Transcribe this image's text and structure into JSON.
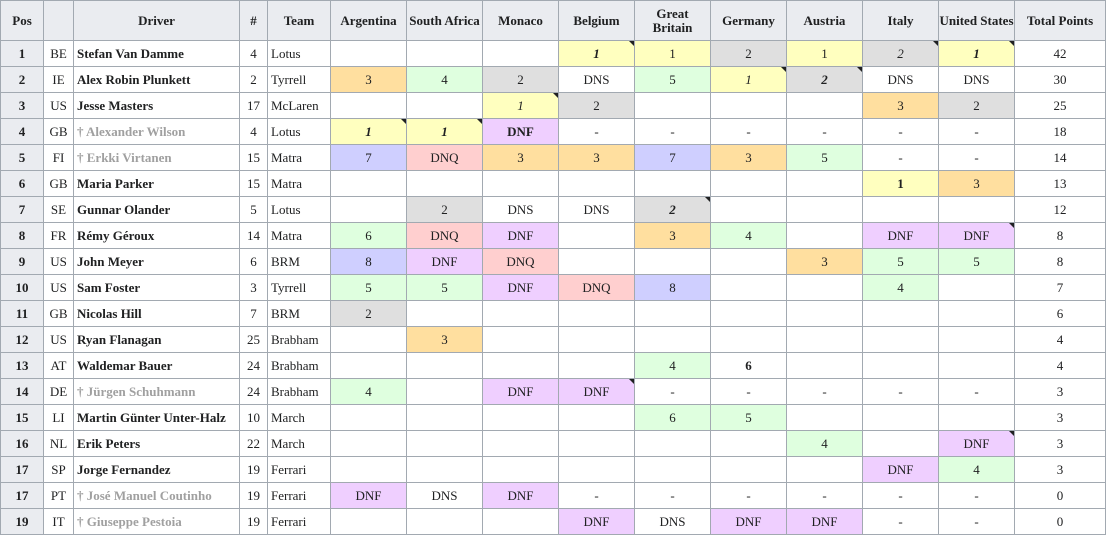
{
  "headers": {
    "pos": "Pos",
    "driver": "Driver",
    "num": "#",
    "team": "Team",
    "races": [
      "Argentina",
      "South Africa",
      "Monaco",
      "Belgium",
      "Great Britain",
      "Germany",
      "Austria",
      "Italy",
      "United States"
    ],
    "points": "Total Points"
  },
  "colors": {
    "gold": "#ffffbf",
    "silver": "#dfdfdf",
    "bronze": "#ffdf9f",
    "points_finish": "#dfffdf",
    "non_points_finish": "#cfcfff",
    "retired": "#efcfff",
    "not_qualified": "#ffcfcf",
    "did_not_start": "#ffffff",
    "header_bg": "#eaecf0",
    "grid": "#a2a9b1",
    "deceased_text": "#a0a0a0"
  },
  "rows": [
    {
      "pos": "1",
      "nat": "BE",
      "driver": "Stefan Van Damme",
      "dead": false,
      "num": "4",
      "team": "Lotus",
      "points": "42",
      "results": [
        {
          "v": "",
          "c": "none"
        },
        {
          "v": "",
          "c": "none"
        },
        {
          "v": "",
          "c": "none"
        },
        {
          "v": "1",
          "c": "gold",
          "b": true,
          "i": true,
          "m": true
        },
        {
          "v": "1",
          "c": "gold"
        },
        {
          "v": "2",
          "c": "silver"
        },
        {
          "v": "1",
          "c": "gold"
        },
        {
          "v": "2",
          "c": "silver",
          "i": true,
          "m": true
        },
        {
          "v": "1",
          "c": "gold",
          "b": true,
          "i": true,
          "m": true
        }
      ]
    },
    {
      "pos": "2",
      "nat": "IE",
      "driver": "Alex Robin Plunkett",
      "dead": false,
      "num": "2",
      "team": "Tyrrell",
      "points": "30",
      "results": [
        {
          "v": "3",
          "c": "bronze"
        },
        {
          "v": "4",
          "c": "green"
        },
        {
          "v": "2",
          "c": "silver"
        },
        {
          "v": "DNS",
          "c": "white"
        },
        {
          "v": "5",
          "c": "green"
        },
        {
          "v": "1",
          "c": "gold",
          "i": true,
          "m": true
        },
        {
          "v": "2",
          "c": "silver",
          "b": true,
          "i": true,
          "m": true
        },
        {
          "v": "DNS",
          "c": "white"
        },
        {
          "v": "DNS",
          "c": "white"
        }
      ]
    },
    {
      "pos": "3",
      "nat": "US",
      "driver": "Jesse Masters",
      "dead": false,
      "num": "17",
      "team": "McLaren",
      "points": "25",
      "results": [
        {
          "v": "",
          "c": "none"
        },
        {
          "v": "",
          "c": "none"
        },
        {
          "v": "1",
          "c": "gold",
          "i": true,
          "m": true
        },
        {
          "v": "2",
          "c": "silver"
        },
        {
          "v": "",
          "c": "none"
        },
        {
          "v": "",
          "c": "none"
        },
        {
          "v": "",
          "c": "none"
        },
        {
          "v": "3",
          "c": "bronze"
        },
        {
          "v": "2",
          "c": "silver"
        }
      ]
    },
    {
      "pos": "4",
      "nat": "GB",
      "driver": "† Alexander Wilson",
      "dead": true,
      "num": "4",
      "team": "Lotus",
      "points": "18",
      "results": [
        {
          "v": "1",
          "c": "gold",
          "b": true,
          "i": true,
          "m": true
        },
        {
          "v": "1",
          "c": "gold",
          "b": true,
          "i": true,
          "m": true
        },
        {
          "v": "DNF",
          "c": "purple",
          "b": true
        },
        {
          "v": "-",
          "c": "none"
        },
        {
          "v": "-",
          "c": "none"
        },
        {
          "v": "-",
          "c": "none"
        },
        {
          "v": "-",
          "c": "none"
        },
        {
          "v": "-",
          "c": "none"
        },
        {
          "v": "-",
          "c": "none"
        }
      ]
    },
    {
      "pos": "5",
      "nat": "FI",
      "driver": "† Erkki Virtanen",
      "dead": true,
      "num": "15",
      "team": "Matra",
      "points": "14",
      "results": [
        {
          "v": "7",
          "c": "blue"
        },
        {
          "v": "DNQ",
          "c": "red"
        },
        {
          "v": "3",
          "c": "bronze"
        },
        {
          "v": "3",
          "c": "bronze"
        },
        {
          "v": "7",
          "c": "blue"
        },
        {
          "v": "3",
          "c": "bronze"
        },
        {
          "v": "5",
          "c": "green"
        },
        {
          "v": "-",
          "c": "none"
        },
        {
          "v": "-",
          "c": "none"
        }
      ]
    },
    {
      "pos": "6",
      "nat": "GB",
      "driver": "Maria Parker",
      "dead": false,
      "num": "15",
      "team": "Matra",
      "points": "13",
      "results": [
        {
          "v": "",
          "c": "none"
        },
        {
          "v": "",
          "c": "none"
        },
        {
          "v": "",
          "c": "none"
        },
        {
          "v": "",
          "c": "none"
        },
        {
          "v": "",
          "c": "none"
        },
        {
          "v": "",
          "c": "none"
        },
        {
          "v": "",
          "c": "none"
        },
        {
          "v": "1",
          "c": "gold",
          "b": true
        },
        {
          "v": "3",
          "c": "bronze"
        }
      ]
    },
    {
      "pos": "7",
      "nat": "SE",
      "driver": "Gunnar Olander",
      "dead": false,
      "num": "5",
      "team": "Lotus",
      "points": "12",
      "results": [
        {
          "v": "",
          "c": "none"
        },
        {
          "v": "2",
          "c": "silver"
        },
        {
          "v": "DNS",
          "c": "white"
        },
        {
          "v": "DNS",
          "c": "white"
        },
        {
          "v": "2",
          "c": "silver",
          "b": true,
          "i": true,
          "m": true
        },
        {
          "v": "",
          "c": "none"
        },
        {
          "v": "",
          "c": "none"
        },
        {
          "v": "",
          "c": "none"
        },
        {
          "v": "",
          "c": "none"
        }
      ]
    },
    {
      "pos": "8",
      "nat": "FR",
      "driver": "Rémy Géroux",
      "dead": false,
      "num": "14",
      "team": "Matra",
      "points": "8",
      "results": [
        {
          "v": "6",
          "c": "green"
        },
        {
          "v": "DNQ",
          "c": "red"
        },
        {
          "v": "DNF",
          "c": "purple"
        },
        {
          "v": "",
          "c": "none"
        },
        {
          "v": "3",
          "c": "bronze"
        },
        {
          "v": "4",
          "c": "green"
        },
        {
          "v": "",
          "c": "none"
        },
        {
          "v": "DNF",
          "c": "purple"
        },
        {
          "v": "DNF",
          "c": "purple",
          "m": true
        }
      ]
    },
    {
      "pos": "9",
      "nat": "US",
      "driver": "John Meyer",
      "dead": false,
      "num": "6",
      "team": "BRM",
      "points": "8",
      "results": [
        {
          "v": "8",
          "c": "blue"
        },
        {
          "v": "DNF",
          "c": "purple"
        },
        {
          "v": "DNQ",
          "c": "red"
        },
        {
          "v": "",
          "c": "none"
        },
        {
          "v": "",
          "c": "none"
        },
        {
          "v": "",
          "c": "none"
        },
        {
          "v": "3",
          "c": "bronze"
        },
        {
          "v": "5",
          "c": "green"
        },
        {
          "v": "5",
          "c": "green"
        }
      ]
    },
    {
      "pos": "10",
      "nat": "US",
      "driver": "Sam Foster",
      "dead": false,
      "num": "3",
      "team": "Tyrrell",
      "points": "7",
      "results": [
        {
          "v": "5",
          "c": "green"
        },
        {
          "v": "5",
          "c": "green"
        },
        {
          "v": "DNF",
          "c": "purple"
        },
        {
          "v": "DNQ",
          "c": "red"
        },
        {
          "v": "8",
          "c": "blue"
        },
        {
          "v": "",
          "c": "none"
        },
        {
          "v": "",
          "c": "none"
        },
        {
          "v": "4",
          "c": "green"
        },
        {
          "v": "",
          "c": "none"
        }
      ]
    },
    {
      "pos": "11",
      "nat": "GB",
      "driver": "Nicolas Hill",
      "dead": false,
      "num": "7",
      "team": "BRM",
      "points": "6",
      "results": [
        {
          "v": "2",
          "c": "silver"
        },
        {
          "v": "",
          "c": "none"
        },
        {
          "v": "",
          "c": "none"
        },
        {
          "v": "",
          "c": "none"
        },
        {
          "v": "",
          "c": "none"
        },
        {
          "v": "",
          "c": "none"
        },
        {
          "v": "",
          "c": "none"
        },
        {
          "v": "",
          "c": "none"
        },
        {
          "v": "",
          "c": "none"
        }
      ]
    },
    {
      "pos": "12",
      "nat": "US",
      "driver": "Ryan Flanagan",
      "dead": false,
      "num": "25",
      "team": "Brabham",
      "points": "4",
      "results": [
        {
          "v": "",
          "c": "none"
        },
        {
          "v": "3",
          "c": "bronze"
        },
        {
          "v": "",
          "c": "none"
        },
        {
          "v": "",
          "c": "none"
        },
        {
          "v": "",
          "c": "none"
        },
        {
          "v": "",
          "c": "none"
        },
        {
          "v": "",
          "c": "none"
        },
        {
          "v": "",
          "c": "none"
        },
        {
          "v": "",
          "c": "none"
        }
      ]
    },
    {
      "pos": "13",
      "nat": "AT",
      "driver": "Waldemar Bauer",
      "dead": false,
      "num": "24",
      "team": "Brabham",
      "points": "4",
      "results": [
        {
          "v": "",
          "c": "none"
        },
        {
          "v": "",
          "c": "none"
        },
        {
          "v": "",
          "c": "none"
        },
        {
          "v": "",
          "c": "none"
        },
        {
          "v": "4",
          "c": "green"
        },
        {
          "v": "6",
          "c": "white",
          "b": true
        },
        {
          "v": "",
          "c": "none"
        },
        {
          "v": "",
          "c": "none"
        },
        {
          "v": "",
          "c": "none"
        }
      ]
    },
    {
      "pos": "14",
      "nat": "DE",
      "driver": "† Jürgen Schuhmann",
      "dead": true,
      "num": "24",
      "team": "Brabham",
      "points": "3",
      "results": [
        {
          "v": "4",
          "c": "green"
        },
        {
          "v": "",
          "c": "none"
        },
        {
          "v": "DNF",
          "c": "purple"
        },
        {
          "v": "DNF",
          "c": "purple",
          "m": true
        },
        {
          "v": "-",
          "c": "none"
        },
        {
          "v": "-",
          "c": "none"
        },
        {
          "v": "-",
          "c": "none"
        },
        {
          "v": "-",
          "c": "none"
        },
        {
          "v": "-",
          "c": "none"
        }
      ]
    },
    {
      "pos": "15",
      "nat": "LI",
      "driver": "Martin Günter Unter-Halz",
      "dead": false,
      "num": "10",
      "team": "March",
      "points": "3",
      "results": [
        {
          "v": "",
          "c": "none"
        },
        {
          "v": "",
          "c": "none"
        },
        {
          "v": "",
          "c": "none"
        },
        {
          "v": "",
          "c": "none"
        },
        {
          "v": "6",
          "c": "green"
        },
        {
          "v": "5",
          "c": "green"
        },
        {
          "v": "",
          "c": "none"
        },
        {
          "v": "",
          "c": "none"
        },
        {
          "v": "",
          "c": "none"
        }
      ]
    },
    {
      "pos": "16",
      "nat": "NL",
      "driver": "Erik Peters",
      "dead": false,
      "num": "22",
      "team": "March",
      "points": "3",
      "results": [
        {
          "v": "",
          "c": "none"
        },
        {
          "v": "",
          "c": "none"
        },
        {
          "v": "",
          "c": "none"
        },
        {
          "v": "",
          "c": "none"
        },
        {
          "v": "",
          "c": "none"
        },
        {
          "v": "",
          "c": "none"
        },
        {
          "v": "4",
          "c": "green"
        },
        {
          "v": "",
          "c": "none"
        },
        {
          "v": "DNF",
          "c": "purple",
          "m": true
        }
      ]
    },
    {
      "pos": "17",
      "nat": "SP",
      "driver": "Jorge Fernandez",
      "dead": false,
      "num": "19",
      "team": "Ferrari",
      "points": "3",
      "results": [
        {
          "v": "",
          "c": "none"
        },
        {
          "v": "",
          "c": "none"
        },
        {
          "v": "",
          "c": "none"
        },
        {
          "v": "",
          "c": "none"
        },
        {
          "v": "",
          "c": "none"
        },
        {
          "v": "",
          "c": "none"
        },
        {
          "v": "",
          "c": "none"
        },
        {
          "v": "DNF",
          "c": "purple"
        },
        {
          "v": "4",
          "c": "green"
        }
      ]
    },
    {
      "pos": "17",
      "nat": "PT",
      "driver": "† José Manuel Coutinho",
      "dead": true,
      "num": "19",
      "team": "Ferrari",
      "points": "0",
      "results": [
        {
          "v": "DNF",
          "c": "purple"
        },
        {
          "v": "DNS",
          "c": "white"
        },
        {
          "v": "DNF",
          "c": "purple"
        },
        {
          "v": "-",
          "c": "none"
        },
        {
          "v": "-",
          "c": "none"
        },
        {
          "v": "-",
          "c": "none"
        },
        {
          "v": "-",
          "c": "none"
        },
        {
          "v": "-",
          "c": "none"
        },
        {
          "v": "-",
          "c": "none"
        }
      ]
    },
    {
      "pos": "19",
      "nat": "IT",
      "driver": "† Giuseppe Pestoia",
      "dead": true,
      "num": "19",
      "team": "Ferrari",
      "points": "0",
      "results": [
        {
          "v": "",
          "c": "none"
        },
        {
          "v": "",
          "c": "none"
        },
        {
          "v": "",
          "c": "none"
        },
        {
          "v": "DNF",
          "c": "purple"
        },
        {
          "v": "DNS",
          "c": "white"
        },
        {
          "v": "DNF",
          "c": "purple"
        },
        {
          "v": "DNF",
          "c": "purple"
        },
        {
          "v": "-",
          "c": "none"
        },
        {
          "v": "-",
          "c": "none"
        }
      ]
    }
  ]
}
